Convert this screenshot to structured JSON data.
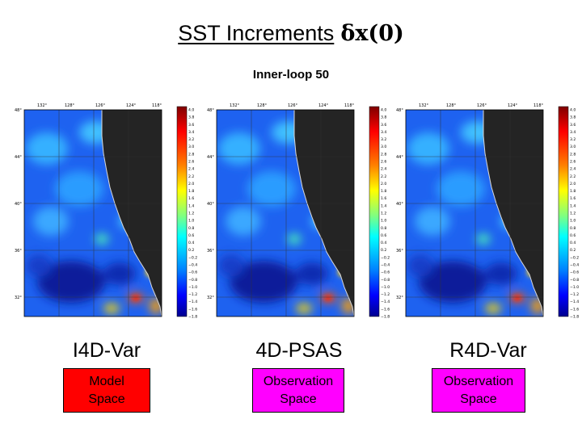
{
  "slide": {
    "title": "SST Increments",
    "title_symbol": "δx(0)",
    "subtitle": "Inner-loop 50"
  },
  "map_labels": {
    "lon_ticks": [
      "132°",
      "128°",
      "126°",
      "124°",
      "118°"
    ],
    "lat_ticks": [
      "48°",
      "44°",
      "40°",
      "36°",
      "32°"
    ],
    "colorbar_ticks": [
      "4.0",
      "3.8",
      "3.6",
      "3.4",
      "3.2",
      "3.0",
      "2.8",
      "2.6",
      "2.4",
      "2.2",
      "2.0",
      "1.8",
      "1.6",
      "1.4",
      "1.2",
      "1.0",
      "0.8",
      "0.6",
      "0.4",
      "0.2",
      "−0.2",
      "−0.4",
      "−0.6",
      "−0.8",
      "−1.0",
      "−1.2",
      "−1.4",
      "−1.6",
      "−1.8"
    ]
  },
  "panels": [
    {
      "method": "I4D-Var",
      "space_line1": "Model",
      "space_line2": "Space",
      "box_color": "#ff0000"
    },
    {
      "method": "4D-PSAS",
      "space_line1": "Observation",
      "space_line2": "Space",
      "box_color": "#ff00ff"
    },
    {
      "method": "R4D-Var",
      "space_line1": "Observation",
      "space_line2": "Space",
      "box_color": "#ff00ff"
    }
  ]
}
